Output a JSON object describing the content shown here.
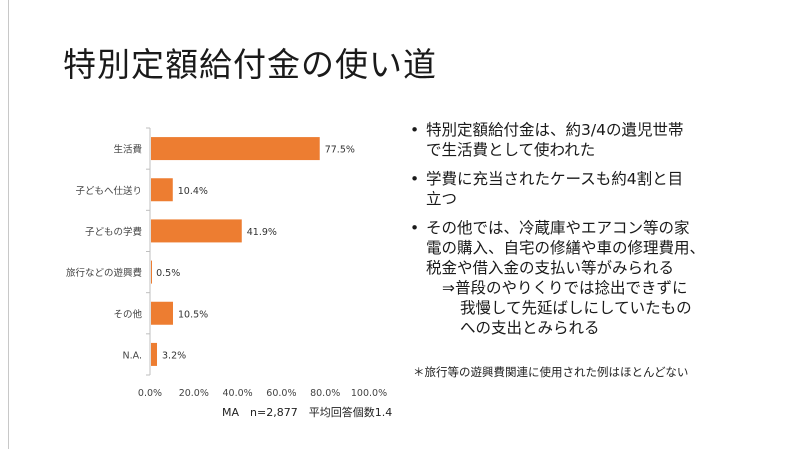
{
  "slide": {
    "title": "特別定額給付金の使い道"
  },
  "chart_data": {
    "type": "bar",
    "orientation": "horizontal",
    "categories": [
      "生活費",
      "子どもへ仕送り",
      "子どもの学費",
      "旅行などの遊興費",
      "その他",
      "N.A."
    ],
    "values": [
      77.5,
      10.4,
      41.9,
      0.5,
      10.5,
      3.2
    ],
    "value_labels": [
      "77.5%",
      "10.4%",
      "41.9%",
      "0.5%",
      "10.5%",
      "3.2%"
    ],
    "xlim": [
      0,
      100
    ],
    "xticks": [
      0,
      20,
      40,
      60,
      80,
      100
    ],
    "xtick_labels": [
      "0.0%",
      "20.0%",
      "40.0%",
      "60.0%",
      "80.0%",
      "100.0%"
    ],
    "bar_color": "#ed7d31",
    "grid": false,
    "note": "MA　n=2,877　平均回答個数1.4"
  },
  "bullets": {
    "b1": {
      "marker": "•",
      "line1": "特別定額給付金は、約3/4の遺児世帯",
      "line2": "で生活費として使われた"
    },
    "b2": {
      "marker": "•",
      "line1": "学費に充当されたケースも約4割と目",
      "line2": "立つ"
    },
    "b3": {
      "marker": "•",
      "line1": "その他では、冷蔵庫やエアコン等の家",
      "line2": "電の購入、自宅の修繕や車の修理費用、",
      "line3": "税金や借入金の支払い等がみられる",
      "line4": "⇒普段のやりくりでは捻出できずに",
      "line5": "我慢して先延ばしにしていたもの",
      "line6": "への支出とみられる"
    }
  },
  "footnote": "＊旅行等の遊興費関連に使用された例はほとんどない"
}
